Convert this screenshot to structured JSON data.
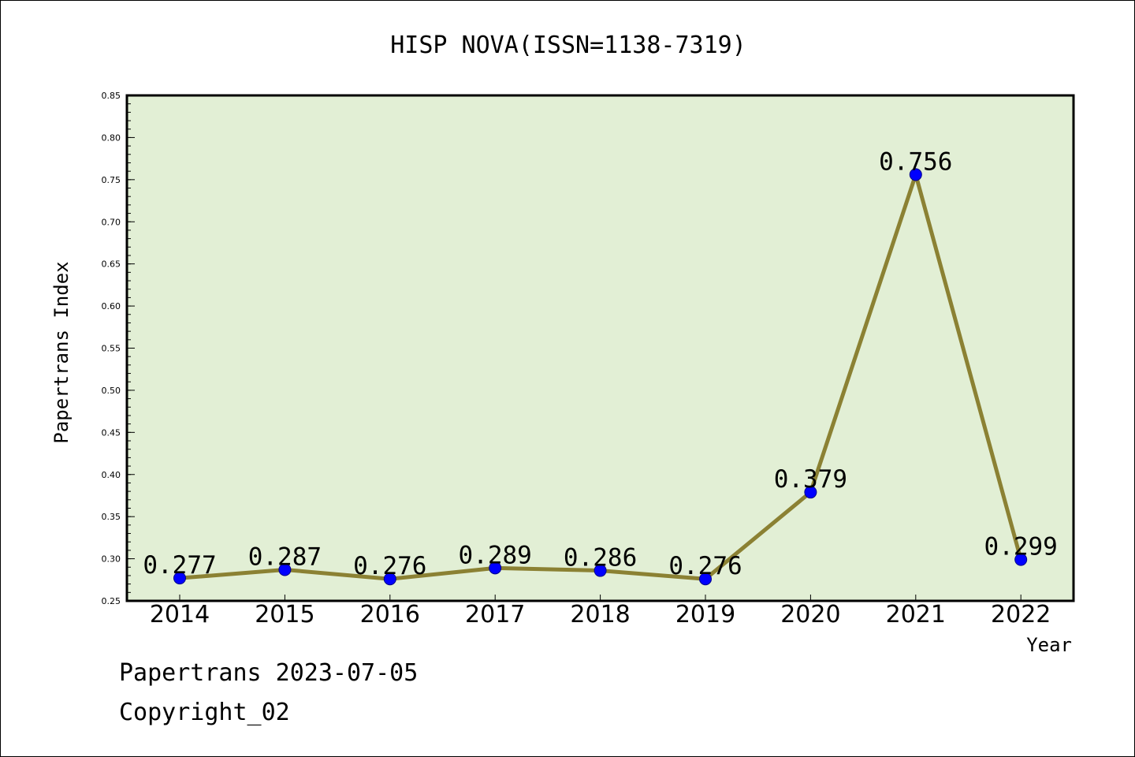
{
  "chart_data": {
    "type": "line",
    "title": "HISP NOVA(ISSN=1138-7319)",
    "xlabel": "Year",
    "ylabel": "Papertrans Index",
    "categories": [
      "2014",
      "2015",
      "2016",
      "2017",
      "2018",
      "2019",
      "2020",
      "2021",
      "2022"
    ],
    "series": [
      {
        "values": [
          0.277,
          0.287,
          0.276,
          0.289,
          0.286,
          0.276,
          0.379,
          0.756,
          0.299
        ],
        "labels": [
          "0.277",
          "0.287",
          "0.276",
          "0.289",
          "0.286",
          "0.276",
          "0.379",
          "0.756",
          "0.299"
        ]
      }
    ],
    "ylim": [
      0.25,
      0.85
    ],
    "yticks": [
      "0.25",
      "0.30",
      "0.35",
      "0.40",
      "0.45",
      "0.50",
      "0.55",
      "0.60",
      "0.65",
      "0.70",
      "0.75",
      "0.80",
      "0.85"
    ],
    "grid": false,
    "legend": "none",
    "colors": {
      "plot_background": "#e2efd5",
      "line": "#8b8133",
      "marker_fill": "#0000ff",
      "marker_edge": "#00008b"
    }
  },
  "footer": {
    "line1": "Papertrans 2023-07-05",
    "line2": "Copyright_02"
  }
}
